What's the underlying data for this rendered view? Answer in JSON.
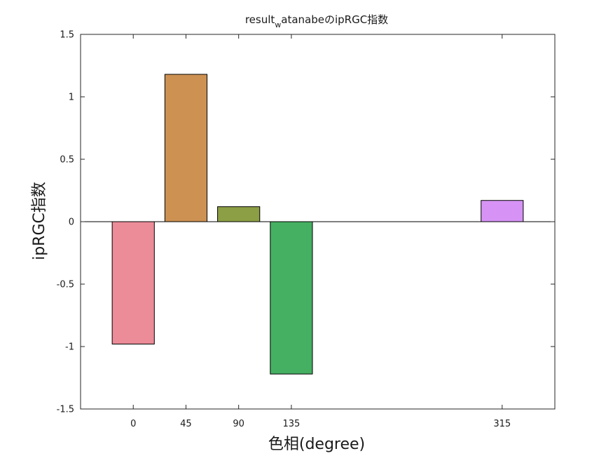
{
  "chart_data": {
    "type": "bar",
    "title": "result_watanabeのipRGC指数",
    "title_parts": {
      "base": "result",
      "subscript": "w",
      "rest": "atanabeのipRGC指数"
    },
    "xlabel": "色相(degree)",
    "ylabel": "ipRGC指数",
    "xlim": [
      -45,
      360
    ],
    "ylim": [
      -1.5,
      1.5
    ],
    "x_ticks": [
      {
        "value": 0,
        "label": "0"
      },
      {
        "value": 45,
        "label": "45"
      },
      {
        "value": 90,
        "label": "90"
      },
      {
        "value": 135,
        "label": "135"
      },
      {
        "value": 315,
        "label": "315"
      }
    ],
    "y_ticks": [
      {
        "value": 1.5,
        "label": "1.5"
      },
      {
        "value": 1,
        "label": "1"
      },
      {
        "value": 0.5,
        "label": "0.5"
      },
      {
        "value": 0,
        "label": "0"
      },
      {
        "value": -0.5,
        "label": "-0.5"
      },
      {
        "value": -1,
        "label": "-1"
      },
      {
        "value": -1.5,
        "label": "-1.5"
      }
    ],
    "bar_width": 36,
    "bars": [
      {
        "x": 0,
        "value": -0.98,
        "color": "#ec8c98"
      },
      {
        "x": 45,
        "value": 1.18,
        "color": "#cd9152"
      },
      {
        "x": 90,
        "value": 0.12,
        "color": "#8c9f45"
      },
      {
        "x": 135,
        "value": -1.22,
        "color": "#45b062"
      },
      {
        "x": 315,
        "value": 0.17,
        "color": "#d693f5"
      }
    ],
    "grid": false,
    "legend": "none",
    "zero_line": true
  }
}
